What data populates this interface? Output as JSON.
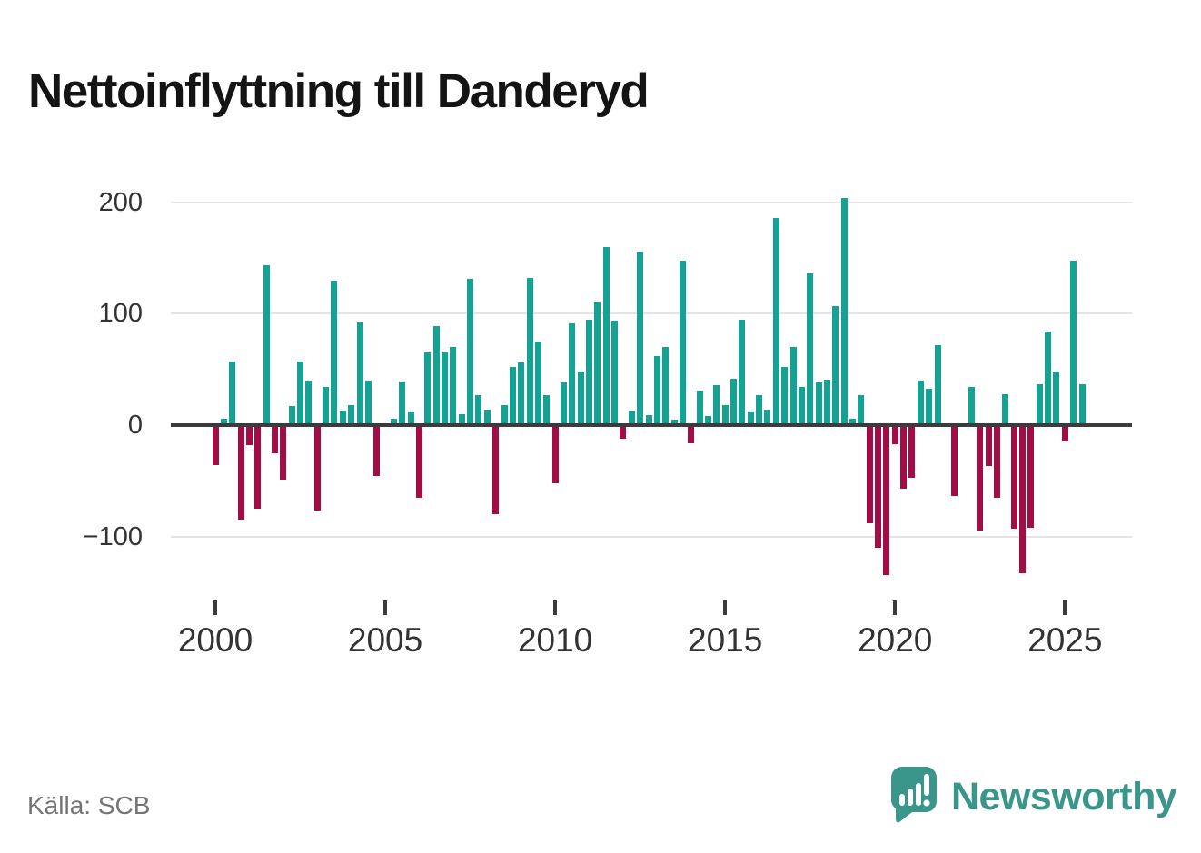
{
  "title": "Nettoinflyttning till Danderyd",
  "source": "Källa: SCB",
  "logo": {
    "text": "Newsworthy",
    "icon": "newsworthy-speech-bubble-chart-icon"
  },
  "chart_data": {
    "type": "bar",
    "title": "Nettoinflyttning till Danderyd",
    "xlabel": "",
    "ylabel": "",
    "grid": "horizontal",
    "legend": "none",
    "ylim": [
      -150,
      215
    ],
    "y_ticks": [
      200,
      100,
      0,
      -100
    ],
    "y_tick_labels": [
      "200",
      "100",
      "0",
      "−100"
    ],
    "x_tick_labels": [
      "2000",
      "2005",
      "2010",
      "2015",
      "2020",
      "2025"
    ],
    "colors": {
      "positive": "#13a294",
      "negative": "#a30d45"
    },
    "categories": [
      "2000 Q1",
      "2000 Q2",
      "2000 Q3",
      "2000 Q4",
      "2001 Q1",
      "2001 Q2",
      "2001 Q3",
      "2001 Q4",
      "2002 Q1",
      "2002 Q2",
      "2002 Q3",
      "2002 Q4",
      "2003 Q1",
      "2003 Q2",
      "2003 Q3",
      "2003 Q4",
      "2004 Q1",
      "2004 Q2",
      "2004 Q3",
      "2004 Q4",
      "2005 Q1",
      "2005 Q2",
      "2005 Q3",
      "2005 Q4",
      "2006 Q1",
      "2006 Q2",
      "2006 Q3",
      "2006 Q4",
      "2007 Q1",
      "2007 Q2",
      "2007 Q3",
      "2007 Q4",
      "2008 Q1",
      "2008 Q2",
      "2008 Q3",
      "2008 Q4",
      "2009 Q1",
      "2009 Q2",
      "2009 Q3",
      "2009 Q4",
      "2010 Q1",
      "2010 Q2",
      "2010 Q3",
      "2010 Q4",
      "2011 Q1",
      "2011 Q2",
      "2011 Q3",
      "2011 Q4",
      "2012 Q1",
      "2012 Q2",
      "2012 Q3",
      "2012 Q4",
      "2013 Q1",
      "2013 Q2",
      "2013 Q3",
      "2013 Q4",
      "2014 Q1",
      "2014 Q2",
      "2014 Q3",
      "2014 Q4",
      "2015 Q1",
      "2015 Q2",
      "2015 Q3",
      "2015 Q4",
      "2016 Q1",
      "2016 Q2",
      "2016 Q3",
      "2016 Q4",
      "2017 Q1",
      "2017 Q2",
      "2017 Q3",
      "2017 Q4",
      "2018 Q1",
      "2018 Q2",
      "2018 Q3",
      "2018 Q4",
      "2019 Q1",
      "2019 Q2",
      "2019 Q3",
      "2019 Q4",
      "2020 Q1",
      "2020 Q2",
      "2020 Q3",
      "2020 Q4",
      "2021 Q1",
      "2021 Q2",
      "2021 Q3",
      "2021 Q4",
      "2022 Q1",
      "2022 Q2",
      "2022 Q3",
      "2022 Q4",
      "2023 Q1",
      "2023 Q2",
      "2023 Q3",
      "2023 Q4",
      "2024 Q1",
      "2024 Q2",
      "2024 Q3",
      "2024 Q4",
      "2025 Q1",
      "2025 Q2",
      "2025 Q3"
    ],
    "values": [
      -36,
      6,
      57,
      -85,
      -18,
      -75,
      144,
      -25,
      -49,
      17,
      57,
      40,
      -77,
      34,
      130,
      13,
      18,
      92,
      40,
      -46,
      0,
      6,
      39,
      12,
      -65,
      65,
      89,
      65,
      70,
      10,
      131,
      27,
      14,
      -80,
      18,
      52,
      56,
      132,
      75,
      27,
      -52,
      38,
      91,
      48,
      95,
      111,
      160,
      94,
      -12,
      13,
      156,
      9,
      62,
      70,
      5,
      148,
      -16,
      31,
      8,
      36,
      18,
      42,
      95,
      12,
      27,
      14,
      186,
      52,
      70,
      34,
      136,
      38,
      41,
      107,
      204,
      6,
      27,
      -88,
      -110,
      -135,
      -17,
      -57,
      -47,
      40,
      33,
      72,
      0,
      -64,
      0,
      34,
      -95,
      -37,
      -65,
      28,
      -93,
      -133,
      -92,
      37,
      84,
      48,
      -15,
      148,
      37
    ]
  }
}
